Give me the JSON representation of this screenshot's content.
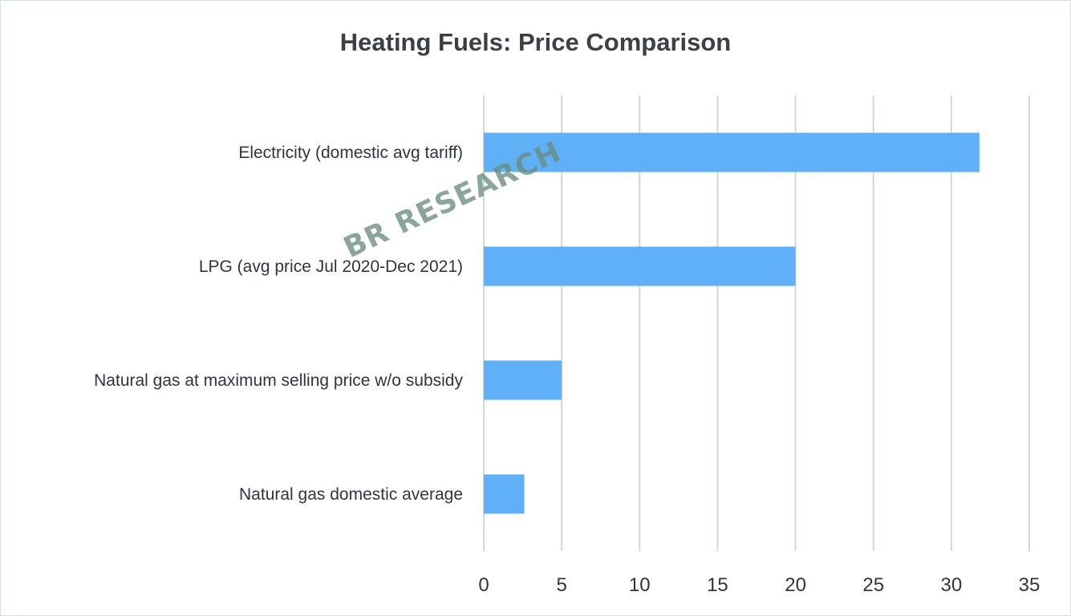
{
  "chart_data": {
    "type": "bar",
    "orientation": "horizontal",
    "title": "Heating Fuels: Price Comparison",
    "categories": [
      "Electricity (domestic avg tariff)",
      "LPG (avg price Jul 2020-Dec 2021)",
      "Natural gas at maximum selling price w/o subsidy",
      "Natural gas domestic average"
    ],
    "values": [
      31.8,
      20.0,
      5.0,
      2.6
    ],
    "xlim": [
      0,
      35
    ],
    "xticks": [
      "0",
      "5",
      "10",
      "15",
      "20",
      "25",
      "30",
      "35"
    ],
    "xlabel": "",
    "ylabel": "",
    "grid": "vertical",
    "legend": "none",
    "bar_color": "#5fb0f7"
  },
  "watermark": "BR RESEARCH",
  "colors": {
    "bar": "#5fb0f7",
    "grid": "#cfd8d8",
    "title": "#3a3f48",
    "label": "#2f3540"
  }
}
